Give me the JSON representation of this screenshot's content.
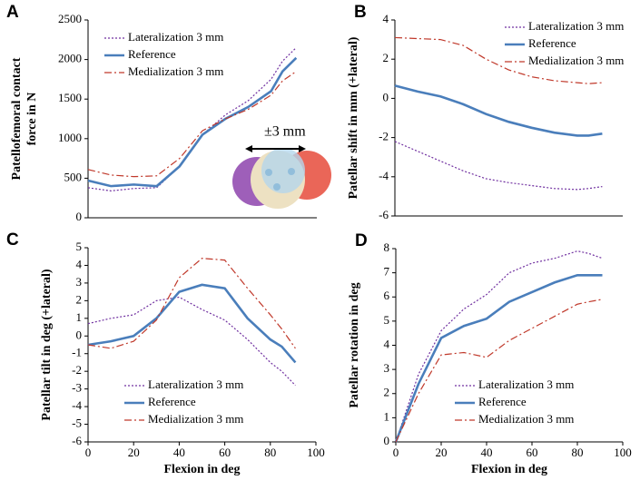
{
  "chart_data": [
    {
      "type": "line",
      "panel_label": "A",
      "ylabel": [
        "Patellofemoral contact",
        "force in N"
      ],
      "annotation": "±3 mm",
      "x": [
        0,
        10,
        20,
        30,
        40,
        50,
        60,
        70,
        80,
        85,
        91
      ],
      "xlim": [
        0,
        100
      ],
      "ylim": [
        0,
        2500
      ],
      "yticks": [
        0,
        500,
        1000,
        1500,
        2000,
        2500
      ],
      "legend": "upper left",
      "series": [
        {
          "name": "Lateralization 3 mm",
          "color": "#7030a0",
          "style": "dotted",
          "values": [
            380,
            340,
            370,
            380,
            650,
            1050,
            1300,
            1480,
            1750,
            1980,
            2150
          ]
        },
        {
          "name": "Reference",
          "color": "#4a7ebb",
          "style": "solid",
          "values": [
            470,
            400,
            420,
            400,
            650,
            1050,
            1250,
            1400,
            1600,
            1850,
            2020
          ]
        },
        {
          "name": "Medialization 3 mm",
          "color": "#c0392b",
          "style": "dashdot",
          "values": [
            610,
            540,
            520,
            530,
            750,
            1100,
            1250,
            1370,
            1550,
            1730,
            1850
          ]
        }
      ]
    },
    {
      "type": "line",
      "panel_label": "B",
      "ylabel": [
        "Patellar shift in mm (+lateral)"
      ],
      "x": [
        0,
        10,
        20,
        30,
        40,
        50,
        60,
        70,
        80,
        85,
        91
      ],
      "xlim": [
        0,
        100
      ],
      "ylim": [
        -6,
        4
      ],
      "yticks": [
        -6,
        -4,
        -2,
        0,
        2,
        4
      ],
      "legend": "upper right",
      "series": [
        {
          "name": "Lateralization 3 mm",
          "color": "#7030a0",
          "style": "dotted",
          "values": [
            -2.2,
            -2.7,
            -3.2,
            -3.7,
            -4.1,
            -4.3,
            -4.45,
            -4.6,
            -4.65,
            -4.6,
            -4.5
          ]
        },
        {
          "name": "Reference",
          "color": "#4a7ebb",
          "style": "solid",
          "values": [
            0.65,
            0.35,
            0.1,
            -0.3,
            -0.8,
            -1.2,
            -1.5,
            -1.75,
            -1.9,
            -1.9,
            -1.8
          ]
        },
        {
          "name": "Medialization 3 mm",
          "color": "#c0392b",
          "style": "dashdot",
          "values": [
            3.1,
            3.05,
            3.0,
            2.7,
            2.0,
            1.45,
            1.1,
            0.9,
            0.8,
            0.75,
            0.8
          ]
        }
      ]
    },
    {
      "type": "line",
      "panel_label": "C",
      "ylabel": [
        "Patellar tilt in deg (+lateral)"
      ],
      "xlabel": "Flexion in deg",
      "x": [
        0,
        10,
        20,
        30,
        40,
        50,
        60,
        70,
        80,
        85,
        91
      ],
      "xlim": [
        0,
        100
      ],
      "xticks": [
        0,
        20,
        40,
        60,
        80,
        100
      ],
      "ylim": [
        -6,
        5
      ],
      "yticks": [
        -6,
        -5,
        -4,
        -3,
        -2,
        -1,
        0,
        1,
        2,
        3,
        4,
        5
      ],
      "legend": "lower center",
      "series": [
        {
          "name": "Lateralization 3 mm",
          "color": "#7030a0",
          "style": "dotted",
          "values": [
            0.7,
            1.0,
            1.2,
            2.0,
            2.2,
            1.5,
            0.9,
            -0.2,
            -1.5,
            -2.0,
            -2.8
          ]
        },
        {
          "name": "Reference",
          "color": "#4a7ebb",
          "style": "solid",
          "values": [
            -0.5,
            -0.3,
            0,
            1.0,
            2.5,
            2.9,
            2.7,
            1.0,
            -0.2,
            -0.6,
            -1.5
          ]
        },
        {
          "name": "Medialization 3 mm",
          "color": "#c0392b",
          "style": "dashdot",
          "values": [
            -0.5,
            -0.7,
            -0.3,
            0.9,
            3.3,
            4.4,
            4.3,
            2.7,
            1.2,
            0.4,
            -0.7
          ]
        }
      ]
    },
    {
      "type": "line",
      "panel_label": "D",
      "ylabel": [
        "Patellar rotation in deg"
      ],
      "xlabel": "Flexion in deg",
      "x": [
        0,
        10,
        20,
        30,
        40,
        50,
        60,
        70,
        80,
        85,
        91
      ],
      "xlim": [
        0,
        100
      ],
      "xticks": [
        0,
        20,
        40,
        60,
        80,
        100
      ],
      "ylim": [
        0,
        8
      ],
      "yticks": [
        0,
        1,
        2,
        3,
        4,
        5,
        6,
        7,
        8
      ],
      "legend": "lower right",
      "series": [
        {
          "name": "Lateralization 3 mm",
          "color": "#7030a0",
          "style": "dotted",
          "values": [
            0,
            2.8,
            4.6,
            5.5,
            6.1,
            7.0,
            7.4,
            7.6,
            7.9,
            7.8,
            7.6
          ]
        },
        {
          "name": "Reference",
          "color": "#4a7ebb",
          "style": "solid",
          "values": [
            0,
            2.4,
            4.3,
            4.8,
            5.1,
            5.8,
            6.2,
            6.6,
            6.9,
            6.9,
            6.9
          ]
        },
        {
          "name": "Medialization 3 mm",
          "color": "#c0392b",
          "style": "dashdot",
          "values": [
            0,
            2.0,
            3.6,
            3.7,
            3.5,
            4.2,
            4.7,
            5.2,
            5.7,
            5.8,
            5.9
          ]
        }
      ]
    }
  ]
}
